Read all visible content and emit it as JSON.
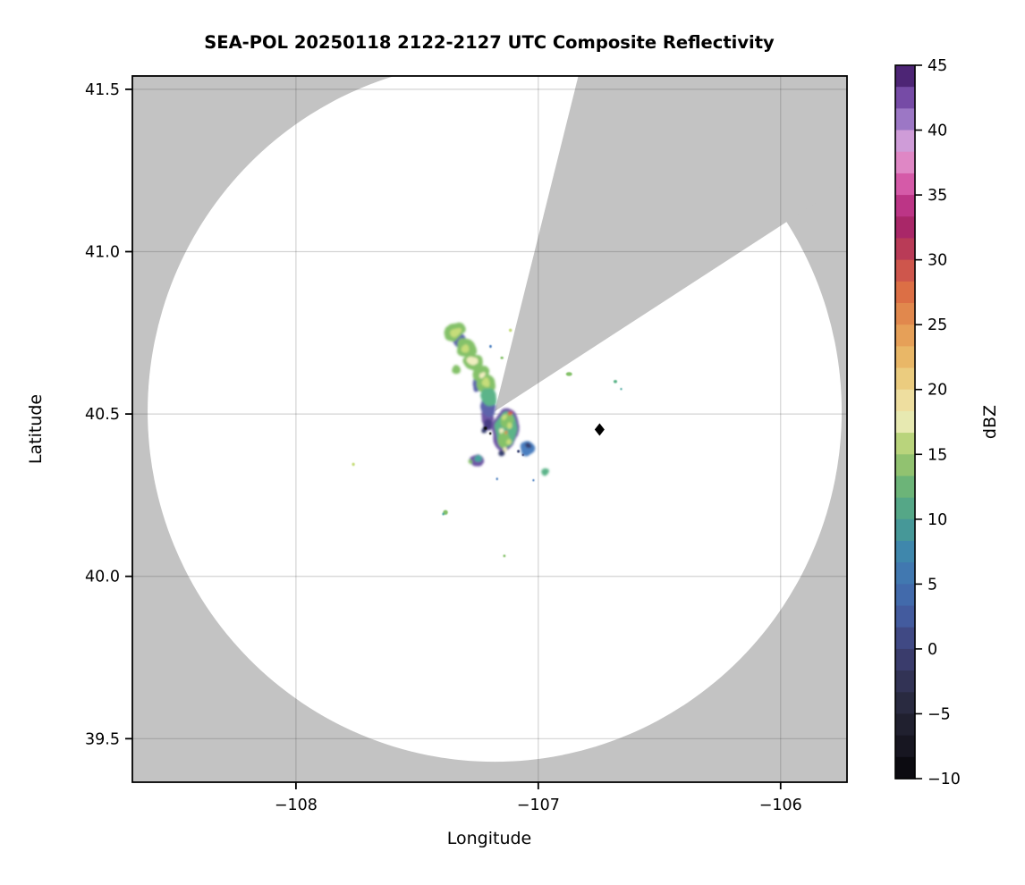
{
  "title": "SEA-POL 20250118 2122-2127 UTC Composite Reflectivity",
  "axes": {
    "xlabel": "Longitude",
    "ylabel": "Latitude",
    "xlim": [
      -108.675,
      -105.726
    ],
    "ylim": [
      39.366,
      41.541
    ],
    "x_ticks": [
      {
        "value": -108,
        "label": "−108"
      },
      {
        "value": -107,
        "label": "−107"
      },
      {
        "value": -106,
        "label": "−106"
      }
    ],
    "y_ticks": [
      {
        "value": 41.5,
        "label": "41.5"
      },
      {
        "value": 41.0,
        "label": "41.0"
      },
      {
        "value": 40.5,
        "label": "40.5"
      },
      {
        "value": 40.0,
        "label": "40.0"
      },
      {
        "value": 39.5,
        "label": "39.5"
      }
    ]
  },
  "colorbar": {
    "label": "dBZ",
    "vmin": -10,
    "vmax": 45,
    "n_segments": 33,
    "tick_values": [
      45,
      40,
      35,
      30,
      25,
      20,
      15,
      10,
      5,
      0,
      -5,
      -10
    ],
    "tick_labels": [
      "45",
      "40",
      "35",
      "30",
      "25",
      "20",
      "15",
      "10",
      "5",
      "0",
      "−5",
      "−10"
    ],
    "anchors": [
      [
        -10,
        "#060509"
      ],
      [
        -7.5,
        "#171621"
      ],
      [
        -5,
        "#252536"
      ],
      [
        -2.5,
        "#323355"
      ],
      [
        0,
        "#3e4077"
      ],
      [
        2.5,
        "#435b9e"
      ],
      [
        5,
        "#4271b2"
      ],
      [
        7.5,
        "#3f87ac"
      ],
      [
        10,
        "#4aa08e"
      ],
      [
        12.5,
        "#6cb478"
      ],
      [
        15,
        "#a3c96c"
      ],
      [
        16.8,
        "#d3e18e"
      ],
      [
        17.8,
        "#f0ecc0"
      ],
      [
        20,
        "#ecd68b"
      ],
      [
        22.5,
        "#e9b767"
      ],
      [
        25,
        "#e49551"
      ],
      [
        27.5,
        "#dc6f45"
      ],
      [
        30,
        "#c74a50"
      ],
      [
        32,
        "#a62560"
      ],
      [
        33.5,
        "#b02a78"
      ],
      [
        35,
        "#cc4398"
      ],
      [
        36.5,
        "#dc6cb4"
      ],
      [
        38,
        "#e195cd"
      ],
      [
        39.2,
        "#cf9cd8"
      ],
      [
        40,
        "#af8ed3"
      ],
      [
        41.5,
        "#8d64ba"
      ],
      [
        43,
        "#6b3f9c"
      ],
      [
        45,
        "#38125a"
      ]
    ]
  },
  "chart_data": {
    "type": "heatmap",
    "description": "Radar PPI composite reflectivity map: white circular coverage area (~1.1 deg radius) on gray background, one gray blocked azimuth sector toward north-northeast, scattered reflectivity echoes near the radar site, black diamond site marker east of radar.",
    "background_color": "#c3c3c3",
    "coverage_fill": "#ffffff",
    "grid_color": "rgba(60,60,60,0.22)",
    "radar_site": {
      "lon": -107.18,
      "lat": 40.508
    },
    "coverage_circle": {
      "rx_deg_lon": 1.432,
      "ry_deg_lat": 1.079
    },
    "blocked_sector": {
      "azimuth_start_deg": 14,
      "azimuth_end_deg": 57
    },
    "marker": {
      "lon": -106.747,
      "lat": 40.452,
      "shape": "diamond",
      "color": "#000000"
    },
    "palette": {
      "green": "#84c169",
      "yellowGreen": "#c6dd7a",
      "paleYellow": "#f0eec0",
      "tealGreen": "#5bb489",
      "teal": "#46a59d",
      "blue": "#4b7fc0",
      "bluePurple": "#5d64ab",
      "purple": "#6e56a5",
      "darkPurple": "#4a3d85",
      "navy": "#363c6e",
      "orange": "#e08a4e",
      "red": "#d85f41",
      "black": "#111111"
    },
    "echoes": [
      {
        "lon": -107.212,
        "lat": 40.487,
        "w": 0.05,
        "h": 0.045,
        "rot": 0,
        "c": "purple"
      },
      {
        "lon": -107.206,
        "lat": 40.522,
        "w": 0.055,
        "h": 0.06,
        "rot": 0,
        "c": "bluePurple"
      },
      {
        "lon": -107.243,
        "lat": 40.602,
        "w": 0.05,
        "h": 0.075,
        "rot": 15,
        "c": "bluePurple"
      },
      {
        "lon": -107.325,
        "lat": 40.727,
        "w": 0.055,
        "h": 0.045,
        "rot": -40,
        "c": "bluePurple"
      },
      {
        "lon": -107.343,
        "lat": 40.752,
        "w": 0.095,
        "h": 0.05,
        "rot": -35,
        "c": "green"
      },
      {
        "lon": -107.3,
        "lat": 40.703,
        "w": 0.08,
        "h": 0.055,
        "rot": -45,
        "c": "green"
      },
      {
        "lon": -107.268,
        "lat": 40.662,
        "w": 0.075,
        "h": 0.05,
        "rot": -40,
        "c": "green"
      },
      {
        "lon": -107.237,
        "lat": 40.625,
        "w": 0.075,
        "h": 0.05,
        "rot": -45,
        "c": "green"
      },
      {
        "lon": -107.213,
        "lat": 40.59,
        "w": 0.08,
        "h": 0.06,
        "rot": -25,
        "c": "green"
      },
      {
        "lon": -107.202,
        "lat": 40.552,
        "w": 0.06,
        "h": 0.055,
        "rot": 0,
        "c": "tealGreen"
      },
      {
        "lon": -107.34,
        "lat": 40.637,
        "w": 0.035,
        "h": 0.028,
        "rot": 0,
        "c": "green"
      },
      {
        "lon": -107.335,
        "lat": 40.748,
        "w": 0.05,
        "h": 0.024,
        "rot": -35,
        "c": "yellowGreen"
      },
      {
        "lon": -107.272,
        "lat": 40.665,
        "w": 0.04,
        "h": 0.024,
        "rot": -40,
        "c": "paleYellow"
      },
      {
        "lon": -107.3,
        "lat": 40.7,
        "w": 0.035,
        "h": 0.022,
        "rot": -45,
        "c": "yellowGreen"
      },
      {
        "lon": -107.215,
        "lat": 40.597,
        "w": 0.032,
        "h": 0.028,
        "rot": 0,
        "c": "yellowGreen"
      },
      {
        "lon": -107.235,
        "lat": 40.623,
        "w": 0.03,
        "h": 0.02,
        "rot": -45,
        "c": "paleYellow"
      },
      {
        "lon": -107.208,
        "lat": 40.468,
        "w": 0.04,
        "h": 0.035,
        "rot": 0,
        "c": "darkPurple"
      },
      {
        "lon": -107.225,
        "lat": 40.45,
        "w": 0.022,
        "h": 0.018,
        "rot": 0,
        "c": "navy"
      },
      {
        "lon": -107.136,
        "lat": 40.452,
        "w": 0.115,
        "h": 0.135,
        "rot": 5,
        "c": "purple"
      },
      {
        "lon": -107.132,
        "lat": 40.452,
        "w": 0.095,
        "h": 0.115,
        "rot": 0,
        "c": "tealGreen"
      },
      {
        "lon": -107.128,
        "lat": 40.478,
        "w": 0.06,
        "h": 0.045,
        "rot": 0,
        "c": "green"
      },
      {
        "lon": -107.142,
        "lat": 40.42,
        "w": 0.055,
        "h": 0.05,
        "rot": 0,
        "c": "green"
      },
      {
        "lon": -107.117,
        "lat": 40.503,
        "w": 0.02,
        "h": 0.016,
        "rot": 0,
        "c": "red"
      },
      {
        "lon": -107.14,
        "lat": 40.49,
        "w": 0.026,
        "h": 0.02,
        "rot": 0,
        "c": "yellowGreen"
      },
      {
        "lon": -107.114,
        "lat": 40.46,
        "w": 0.024,
        "h": 0.02,
        "rot": 0,
        "c": "yellowGreen"
      },
      {
        "lon": -107.15,
        "lat": 40.447,
        "w": 0.02,
        "h": 0.018,
        "rot": 0,
        "c": "paleYellow"
      },
      {
        "lon": -107.12,
        "lat": 40.413,
        "w": 0.024,
        "h": 0.018,
        "rot": 0,
        "c": "yellowGreen"
      },
      {
        "lon": -107.137,
        "lat": 40.39,
        "w": 0.02,
        "h": 0.015,
        "rot": 0,
        "c": "paleYellow"
      },
      {
        "lon": -107.128,
        "lat": 40.44,
        "w": 0.013,
        "h": 0.012,
        "rot": 0,
        "c": "orange"
      },
      {
        "lon": -107.152,
        "lat": 40.38,
        "w": 0.028,
        "h": 0.02,
        "rot": 0,
        "c": "navy"
      },
      {
        "lon": -107.252,
        "lat": 40.356,
        "w": 0.052,
        "h": 0.04,
        "rot": 0,
        "c": "purple"
      },
      {
        "lon": -107.247,
        "lat": 40.362,
        "w": 0.028,
        "h": 0.024,
        "rot": 0,
        "c": "teal"
      },
      {
        "lon": -107.276,
        "lat": 40.35,
        "w": 0.015,
        "h": 0.012,
        "rot": 0,
        "c": "green"
      },
      {
        "lon": -107.042,
        "lat": 40.39,
        "w": 0.058,
        "h": 0.048,
        "rot": 0,
        "c": "blue"
      },
      {
        "lon": -107.038,
        "lat": 40.4,
        "w": 0.02,
        "h": 0.015,
        "rot": 0,
        "c": "navy"
      },
      {
        "lon": -106.975,
        "lat": 40.325,
        "w": 0.032,
        "h": 0.026,
        "rot": 0,
        "c": "tealGreen"
      }
    ],
    "specks": [
      {
        "lon": -107.763,
        "lat": 40.345,
        "w": 0.012,
        "h": 0.01,
        "c": "yellowGreen"
      },
      {
        "lon": -107.383,
        "lat": 40.197,
        "w": 0.02,
        "h": 0.015,
        "c": "green"
      },
      {
        "lon": -107.392,
        "lat": 40.192,
        "w": 0.009,
        "h": 0.008,
        "c": "teal"
      },
      {
        "lon": -107.14,
        "lat": 40.063,
        "w": 0.01,
        "h": 0.008,
        "c": "green"
      },
      {
        "lon": -107.17,
        "lat": 40.3,
        "w": 0.008,
        "h": 0.008,
        "c": "blue"
      },
      {
        "lon": -107.02,
        "lat": 40.296,
        "w": 0.008,
        "h": 0.007,
        "c": "blue"
      },
      {
        "lon": -107.115,
        "lat": 40.758,
        "w": 0.013,
        "h": 0.01,
        "c": "yellowGreen"
      },
      {
        "lon": -107.197,
        "lat": 40.708,
        "w": 0.01,
        "h": 0.009,
        "c": "blue"
      },
      {
        "lon": -107.15,
        "lat": 40.673,
        "w": 0.013,
        "h": 0.008,
        "c": "green"
      },
      {
        "lon": -106.873,
        "lat": 40.623,
        "w": 0.026,
        "h": 0.012,
        "c": "green"
      },
      {
        "lon": -106.682,
        "lat": 40.6,
        "w": 0.015,
        "h": 0.01,
        "c": "tealGreen"
      },
      {
        "lon": -106.658,
        "lat": 40.577,
        "w": 0.007,
        "h": 0.007,
        "c": "teal"
      },
      {
        "lon": -107.218,
        "lat": 40.456,
        "w": 0.013,
        "h": 0.01,
        "c": "black"
      },
      {
        "lon": -107.198,
        "lat": 40.44,
        "w": 0.009,
        "h": 0.008,
        "c": "black"
      },
      {
        "lon": -107.082,
        "lat": 40.385,
        "w": 0.011,
        "h": 0.009,
        "c": "navy"
      },
      {
        "lon": -107.063,
        "lat": 40.374,
        "w": 0.008,
        "h": 0.007,
        "c": "navy"
      }
    ]
  }
}
